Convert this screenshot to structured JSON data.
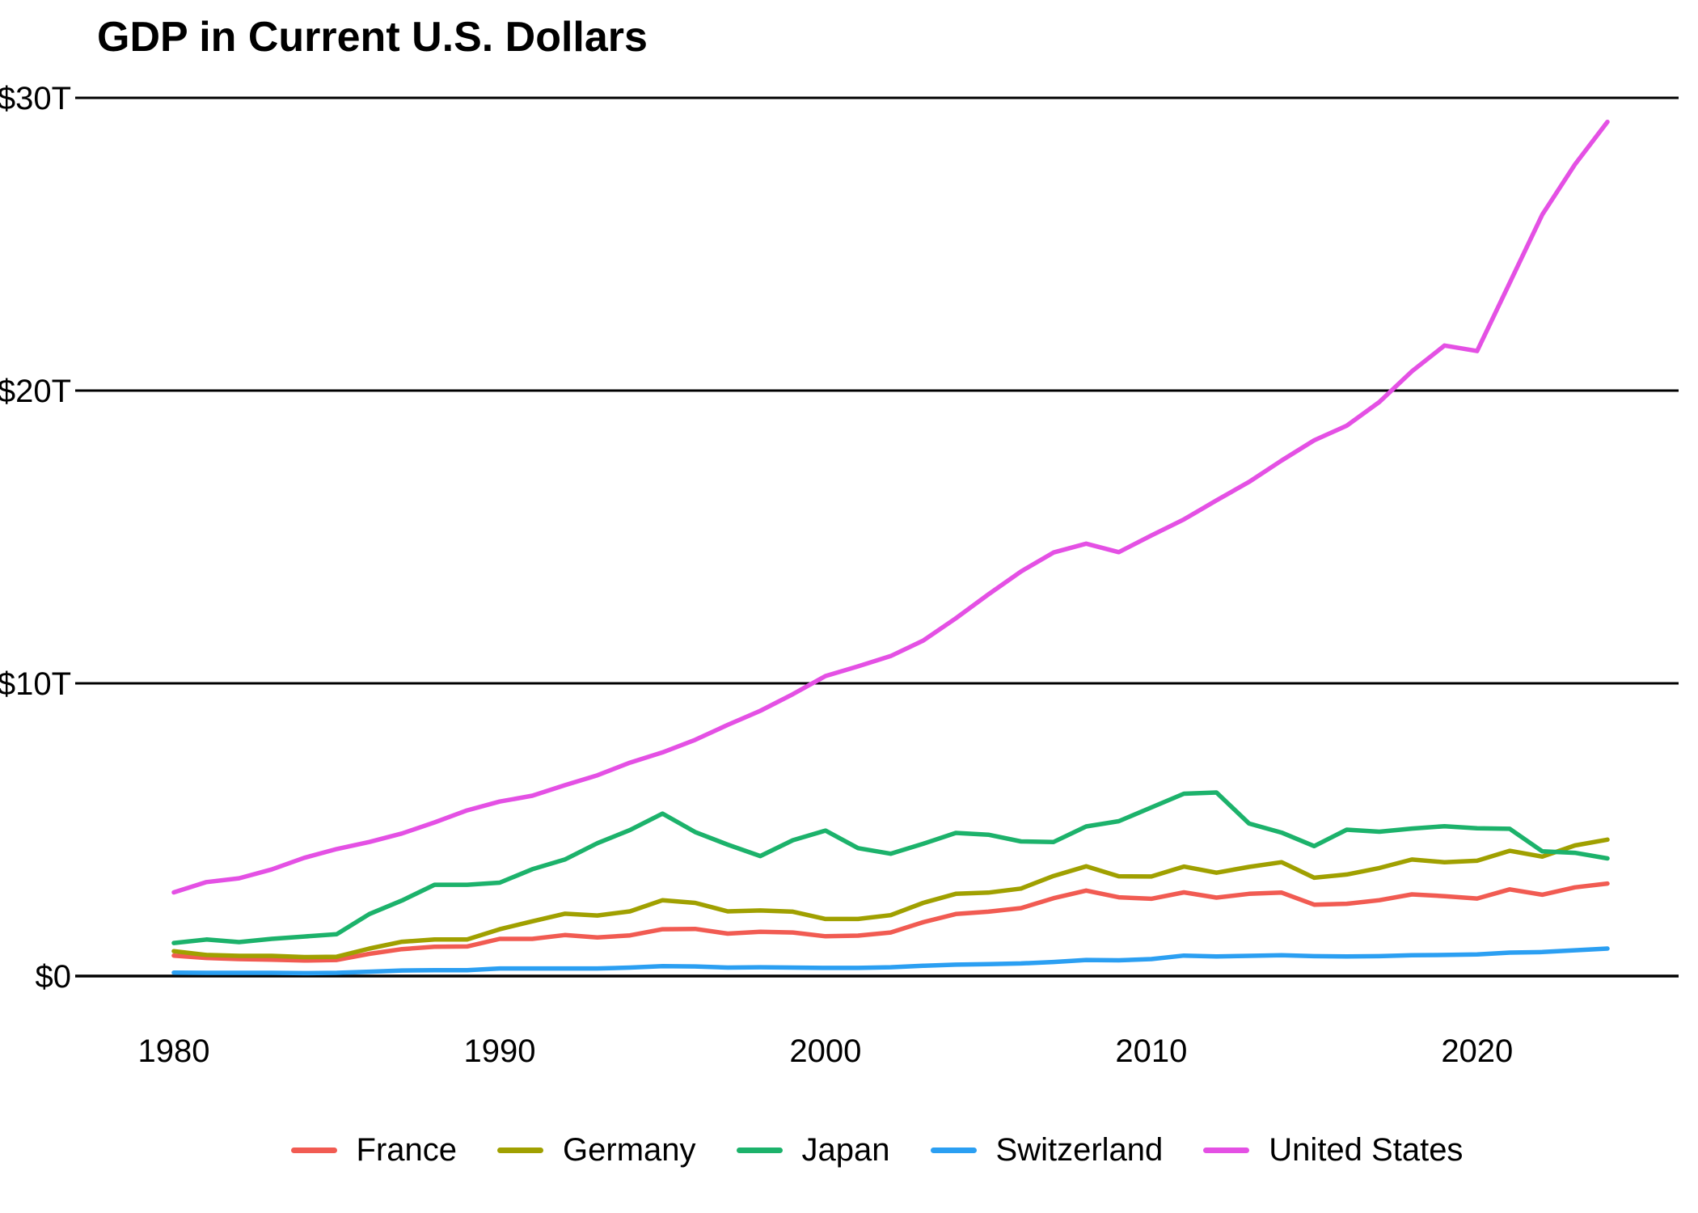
{
  "chart_data": {
    "type": "line",
    "title": "GDP in Current U.S. Dollars",
    "xlabel": "",
    "ylabel": "",
    "x_range": [
      1980,
      2024
    ],
    "y_range": [
      0,
      30
    ],
    "x_ticks": [
      1980,
      1990,
      2000,
      2010,
      2020
    ],
    "y_ticks": [
      {
        "value": 0,
        "label": "$0"
      },
      {
        "value": 10,
        "label": "$10T"
      },
      {
        "value": 20,
        "label": "$20T"
      },
      {
        "value": 30,
        "label": "$30T"
      }
    ],
    "grid": "horizontal-major-only",
    "grid_color": "#000000",
    "text_color": "#000000",
    "legend_position": "bottom-center",
    "years": [
      1980,
      1981,
      1982,
      1983,
      1984,
      1985,
      1986,
      1987,
      1988,
      1989,
      1990,
      1991,
      1992,
      1993,
      1994,
      1995,
      1996,
      1997,
      1998,
      1999,
      2000,
      2001,
      2002,
      2003,
      2004,
      2005,
      2006,
      2007,
      2008,
      2009,
      2010,
      2011,
      2012,
      2013,
      2014,
      2015,
      2016,
      2017,
      2018,
      2019,
      2020,
      2021,
      2022,
      2023,
      2024
    ],
    "series": [
      {
        "name": "France",
        "color": "#F15B52",
        "values": [
          0.7,
          0.62,
          0.58,
          0.56,
          0.53,
          0.55,
          0.76,
          0.92,
          1.0,
          1.01,
          1.27,
          1.27,
          1.4,
          1.32,
          1.39,
          1.6,
          1.61,
          1.45,
          1.51,
          1.49,
          1.36,
          1.38,
          1.49,
          1.84,
          2.12,
          2.2,
          2.32,
          2.66,
          2.92,
          2.69,
          2.64,
          2.86,
          2.68,
          2.81,
          2.85,
          2.44,
          2.47,
          2.59,
          2.79,
          2.73,
          2.65,
          2.96,
          2.78,
          3.03,
          3.16
        ]
      },
      {
        "name": "Germany",
        "color": "#A0A000",
        "values": [
          0.85,
          0.72,
          0.69,
          0.69,
          0.65,
          0.66,
          0.94,
          1.17,
          1.25,
          1.25,
          1.6,
          1.87,
          2.13,
          2.07,
          2.21,
          2.59,
          2.5,
          2.21,
          2.24,
          2.2,
          1.95,
          1.95,
          2.08,
          2.5,
          2.81,
          2.85,
          2.99,
          3.42,
          3.75,
          3.41,
          3.4,
          3.74,
          3.53,
          3.73,
          3.89,
          3.36,
          3.47,
          3.69,
          3.98,
          3.89,
          3.94,
          4.28,
          4.08,
          4.46,
          4.66
        ]
      },
      {
        "name": "Japan",
        "color": "#1CB26B",
        "values": [
          1.13,
          1.25,
          1.16,
          1.27,
          1.35,
          1.43,
          2.12,
          2.58,
          3.12,
          3.12,
          3.19,
          3.65,
          3.98,
          4.54,
          4.99,
          5.55,
          4.92,
          4.49,
          4.1,
          4.64,
          4.97,
          4.37,
          4.18,
          4.52,
          4.89,
          4.83,
          4.6,
          4.58,
          5.11,
          5.29,
          5.76,
          6.23,
          6.27,
          5.21,
          4.9,
          4.44,
          5.0,
          4.93,
          5.04,
          5.12,
          5.05,
          5.03,
          4.26,
          4.21,
          4.02
        ]
      },
      {
        "name": "Switzerland",
        "color": "#2B9FF2",
        "values": [
          0.12,
          0.11,
          0.11,
          0.11,
          0.1,
          0.11,
          0.15,
          0.19,
          0.2,
          0.2,
          0.26,
          0.26,
          0.26,
          0.26,
          0.29,
          0.34,
          0.33,
          0.29,
          0.3,
          0.29,
          0.28,
          0.28,
          0.3,
          0.35,
          0.39,
          0.41,
          0.43,
          0.48,
          0.55,
          0.54,
          0.58,
          0.7,
          0.67,
          0.69,
          0.71,
          0.68,
          0.67,
          0.68,
          0.71,
          0.72,
          0.74,
          0.8,
          0.82,
          0.88,
          0.94
        ]
      },
      {
        "name": "United States",
        "color": "#E450E4",
        "values": [
          2.86,
          3.21,
          3.34,
          3.64,
          4.04,
          4.34,
          4.58,
          4.87,
          5.25,
          5.66,
          5.96,
          6.16,
          6.52,
          6.86,
          7.29,
          7.64,
          8.07,
          8.58,
          9.06,
          9.63,
          10.25,
          10.58,
          10.93,
          11.46,
          12.22,
          13.04,
          13.82,
          14.47,
          14.77,
          14.48,
          15.05,
          15.6,
          16.25,
          16.88,
          17.61,
          18.3,
          18.8,
          19.61,
          20.66,
          21.54,
          21.35,
          23.68,
          26.01,
          27.72,
          29.18
        ]
      }
    ]
  }
}
